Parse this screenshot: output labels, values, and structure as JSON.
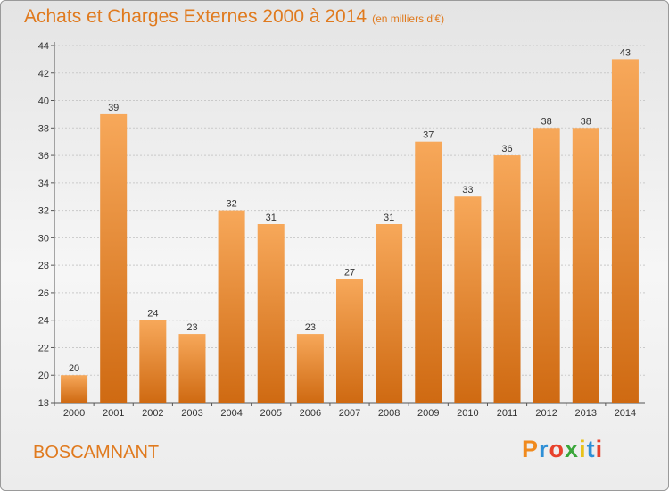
{
  "header": {
    "title": "Achats et Charges Externes 2000 à 2014",
    "subtitle": "(en milliers d'€)"
  },
  "footer": {
    "commune": "BOSCAMNANT",
    "logo_text": "Proxiti",
    "logo_colors": [
      "#f08a1e",
      "#2e8fd6",
      "#e8422c",
      "#3aa63a",
      "#e8c21a",
      "#2e8fd6",
      "#e8422c"
    ]
  },
  "colors": {
    "bar_light": "#f7a85a",
    "bar_dark": "#cf6a12",
    "text_accent": "#e07a1e"
  },
  "chart_data": {
    "type": "bar",
    "title": "Achats et Charges Externes 2000 à 2014",
    "subtitle": "(en milliers d'€)",
    "categories": [
      "2000",
      "2001",
      "2002",
      "2003",
      "2004",
      "2005",
      "2006",
      "2007",
      "2008",
      "2009",
      "2010",
      "2011",
      "2012",
      "2013",
      "2014"
    ],
    "values": [
      20,
      39,
      24,
      23,
      32,
      31,
      23,
      27,
      31,
      37,
      33,
      36,
      38,
      38,
      43
    ],
    "ylim": [
      18,
      44
    ],
    "yticks": [
      18,
      20,
      22,
      24,
      26,
      28,
      30,
      32,
      34,
      36,
      38,
      40,
      42,
      44
    ],
    "grid": true,
    "data_labels": true
  }
}
